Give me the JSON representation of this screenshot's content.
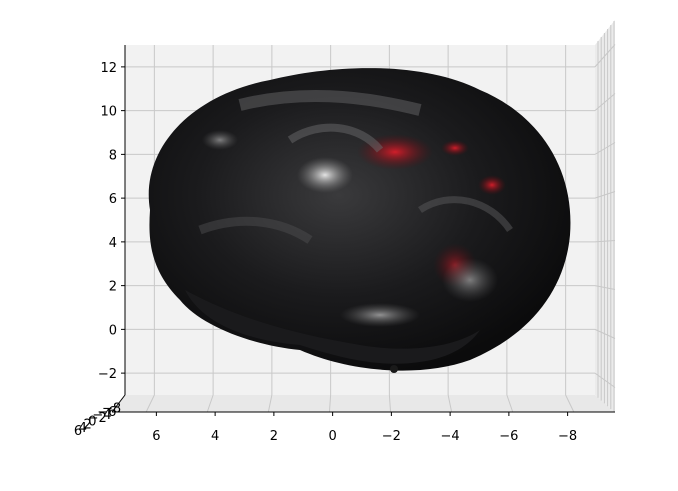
{
  "chart_data": {
    "type": "scatter",
    "subtype": "3d-surface-render",
    "grid": true,
    "x_ticks": [
      6,
      4,
      2,
      0,
      -2,
      -4,
      -6,
      -8
    ],
    "y_ticks": [
      12,
      10,
      8,
      6,
      4,
      2,
      0,
      -2
    ],
    "depth_ticks": [
      6,
      4,
      2,
      0,
      -2,
      -4,
      -6,
      -8
    ],
    "x_range": [
      7,
      -9
    ],
    "y_range": [
      -3,
      13
    ],
    "colors": {
      "pane_back": "#f2f2f2",
      "pane_side": "#ebebeb",
      "grid": "#c8c8c8",
      "surface_dark": "#0d0d0f",
      "surface_mid": "#4a4a4c",
      "surface_light": "#c8c8c8",
      "highlight_red": "#a0141e"
    }
  }
}
